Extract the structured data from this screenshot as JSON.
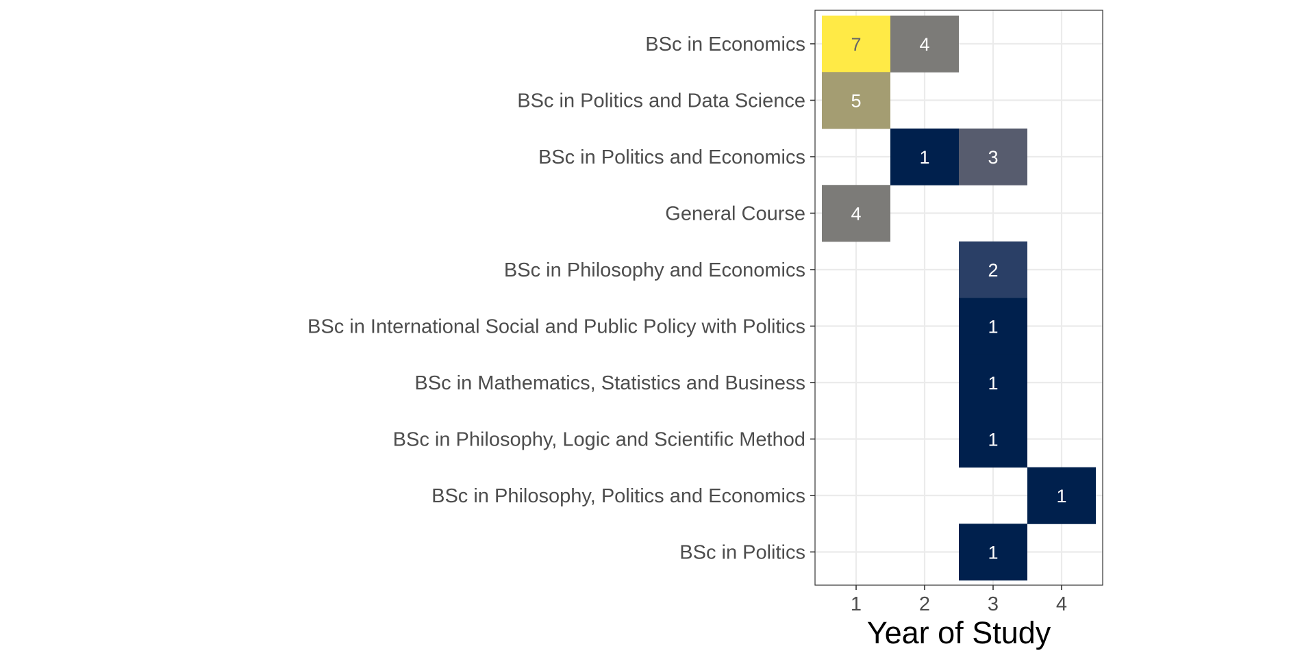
{
  "chart_data": {
    "type": "heatmap",
    "title": "",
    "xlabel": "Year of Study",
    "ylabel": "",
    "x_categories": [
      1,
      2,
      3,
      4
    ],
    "y_categories": [
      "BSc in Economics",
      "BSc in Politics and Data Science",
      "BSc in Politics and Economics",
      "General Course",
      "BSc in Philosophy and Economics",
      "BSc in International Social and Public Policy with Politics",
      "BSc in Mathematics, Statistics and Business",
      "BSc in Philosophy, Logic and Scientific Method",
      "BSc in Philosophy, Politics and Economics",
      "BSc in Politics"
    ],
    "cells": [
      {
        "y": "BSc in Economics",
        "x": 1,
        "value": 7
      },
      {
        "y": "BSc in Economics",
        "x": 2,
        "value": 4
      },
      {
        "y": "BSc in Politics and Data Science",
        "x": 1,
        "value": 5
      },
      {
        "y": "BSc in Politics and Economics",
        "x": 2,
        "value": 1
      },
      {
        "y": "BSc in Politics and Economics",
        "x": 3,
        "value": 3
      },
      {
        "y": "General Course",
        "x": 1,
        "value": 4
      },
      {
        "y": "BSc in Philosophy and Economics",
        "x": 3,
        "value": 2
      },
      {
        "y": "BSc in International Social and Public Policy with Politics",
        "x": 3,
        "value": 1
      },
      {
        "y": "BSc in Mathematics, Statistics and Business",
        "x": 3,
        "value": 1
      },
      {
        "y": "BSc in Philosophy, Logic and Scientific Method",
        "x": 3,
        "value": 1
      },
      {
        "y": "BSc in Philosophy, Politics and Economics",
        "x": 4,
        "value": 1
      },
      {
        "y": "BSc in Politics",
        "x": 3,
        "value": 1
      }
    ],
    "color_scale": "cividis",
    "value_colors": {
      "1": "#00204d",
      "2": "#2a3f66",
      "3": "#575c6e",
      "4": "#7c7b78",
      "5": "#a49d72",
      "7": "#ffea46"
    },
    "label_colors": {
      "dark": "#ffffff",
      "light": "#666666"
    },
    "grid": true,
    "legend": "none"
  }
}
